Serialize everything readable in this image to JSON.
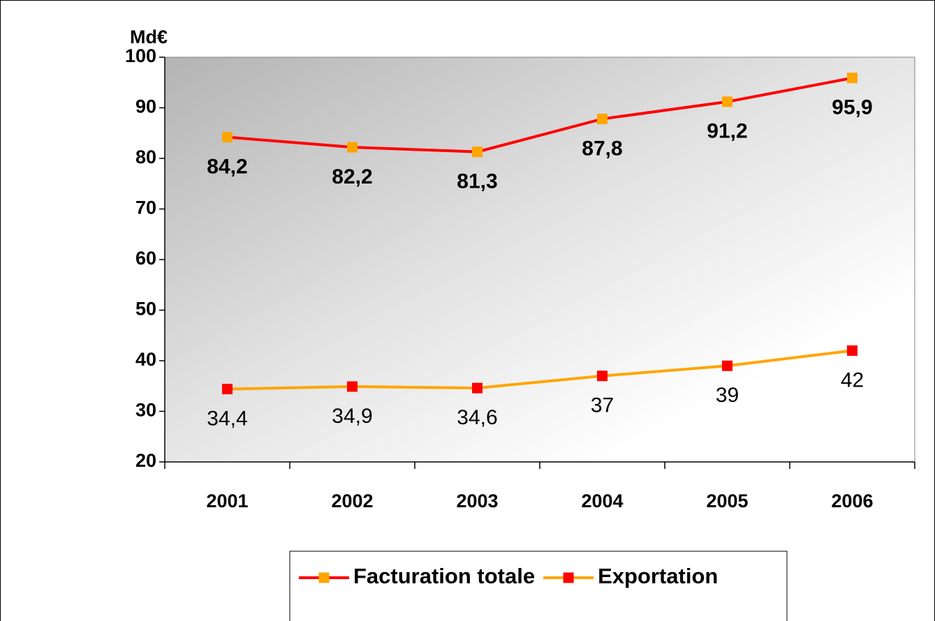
{
  "chart_data": {
    "type": "line",
    "y_label": "Md€",
    "categories": [
      "2001",
      "2002",
      "2003",
      "2004",
      "2005",
      "2006"
    ],
    "series": [
      {
        "name": "Facturation totale",
        "color": "#ff0000",
        "marker_color": "#ffa500",
        "values": [
          84.2,
          82.2,
          81.3,
          87.8,
          91.2,
          95.9
        ],
        "value_labels": [
          "84,2",
          "82,2",
          "81,3",
          "87,8",
          "91,2",
          "95,9"
        ]
      },
      {
        "name": "Exportation",
        "color": "#ffa500",
        "marker_color": "#ff0000",
        "values": [
          34.4,
          34.9,
          34.6,
          37,
          39,
          42
        ],
        "value_labels": [
          "34,4",
          "34,9",
          "34,6",
          "37",
          "39",
          "42"
        ]
      }
    ],
    "ylim": [
      20,
      100
    ],
    "yticks": [
      20,
      30,
      40,
      50,
      60,
      70,
      80,
      90,
      100
    ],
    "legend": "bottom"
  }
}
